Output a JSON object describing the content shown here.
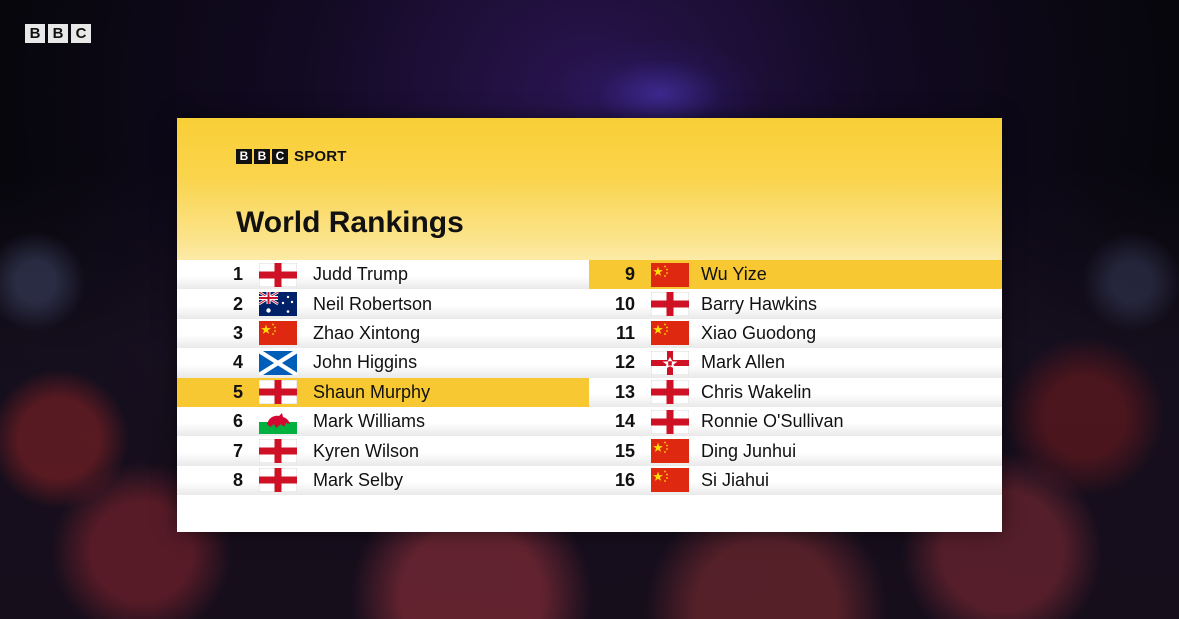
{
  "corner_logo": {
    "letters": [
      "B",
      "B",
      "C"
    ]
  },
  "panel": {
    "logo_letters": [
      "B",
      "B",
      "C"
    ],
    "logo_word": "SPORT",
    "title": "World Rankings"
  },
  "colors": {
    "accent": "#f7c832",
    "header_yellow": "#f9cf36"
  },
  "rankings": [
    {
      "rank": "1",
      "name": "Judd Trump",
      "flag": "england-flag-icon",
      "highlight": false
    },
    {
      "rank": "2",
      "name": "Neil Robertson",
      "flag": "australia-flag-icon",
      "highlight": false
    },
    {
      "rank": "3",
      "name": "Zhao Xintong",
      "flag": "china-flag-icon",
      "highlight": false
    },
    {
      "rank": "4",
      "name": "John Higgins",
      "flag": "scotland-flag-icon",
      "highlight": false
    },
    {
      "rank": "5",
      "name": "Shaun Murphy",
      "flag": "england-flag-icon",
      "highlight": true
    },
    {
      "rank": "6",
      "name": "Mark Williams",
      "flag": "wales-flag-icon",
      "highlight": false
    },
    {
      "rank": "7",
      "name": "Kyren Wilson",
      "flag": "england-flag-icon",
      "highlight": false
    },
    {
      "rank": "8",
      "name": "Mark Selby",
      "flag": "england-flag-icon",
      "highlight": false
    },
    {
      "rank": "9",
      "name": "Wu Yize",
      "flag": "china-flag-icon",
      "highlight": true
    },
    {
      "rank": "10",
      "name": "Barry Hawkins",
      "flag": "england-flag-icon",
      "highlight": false
    },
    {
      "rank": "11",
      "name": "Xiao Guodong",
      "flag": "china-flag-icon",
      "highlight": false
    },
    {
      "rank": "12",
      "name": "Mark Allen",
      "flag": "northern-ireland-flag-icon",
      "highlight": false
    },
    {
      "rank": "13",
      "name": "Chris Wakelin",
      "flag": "england-flag-icon",
      "highlight": false
    },
    {
      "rank": "14",
      "name": "Ronnie O'Sullivan",
      "flag": "england-flag-icon",
      "highlight": false
    },
    {
      "rank": "15",
      "name": "Ding Junhui",
      "flag": "china-flag-icon",
      "highlight": false
    },
    {
      "rank": "16",
      "name": "Si Jiahui",
      "flag": "china-flag-icon",
      "highlight": false
    }
  ]
}
